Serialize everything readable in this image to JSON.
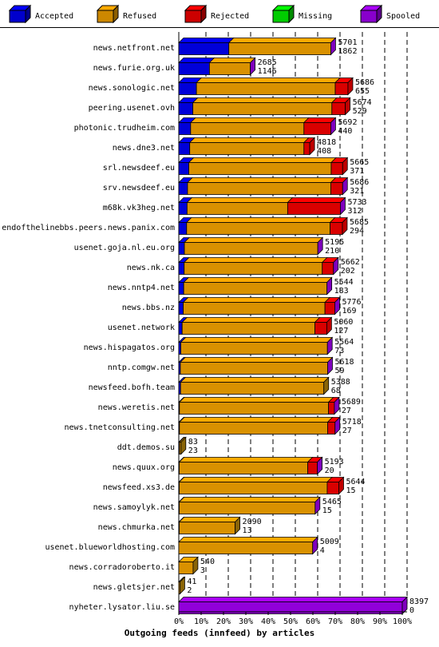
{
  "chart_data": {
    "type": "bar",
    "orientation": "horizontal",
    "stacked": true,
    "title": "",
    "xlabel": "Outgoing feeds (innfeed) by articles",
    "ylabel": "",
    "xlim": [
      0,
      100
    ],
    "x_ticks": [
      "0%",
      "10%",
      "20%",
      "30%",
      "40%",
      "50%",
      "60%",
      "70%",
      "80%",
      "90%",
      "100%"
    ],
    "grid": true,
    "legend_position": "top",
    "legend": [
      {
        "name": "Accepted",
        "color": "#0000ff"
      },
      {
        "name": "Refused",
        "color": "#ffaa00"
      },
      {
        "name": "Rejected",
        "color": "#ff0000"
      },
      {
        "name": "Missing",
        "color": "#00ff00"
      },
      {
        "name": "Spooled",
        "color": "#aa00ff"
      }
    ],
    "categories": [
      "news.netfront.net",
      "news.furie.org.uk",
      "news.sonologic.net",
      "peering.usenet.ovh",
      "photonic.trudheim.com",
      "news.dne3.net",
      "srl.newsdeef.eu",
      "srv.newsdeef.eu",
      "m68k.vk3heg.net",
      "endofthelinebbs.peers.news.panix.com",
      "usenet.goja.nl.eu.org",
      "news.nk.ca",
      "news.nntp4.net",
      "news.bbs.nz",
      "usenet.network",
      "news.hispagatos.org",
      "nntp.comgw.net",
      "newsfeed.bofh.team",
      "news.weretis.net",
      "news.tnetconsulting.net",
      "ddt.demos.su",
      "news.quux.org",
      "newsfeed.xs3.de",
      "news.samoylyk.net",
      "news.chmurka.net",
      "usenet.blueworldhosting.com",
      "news.corradoroberto.it",
      "news.gletsjer.net",
      "nyheter.lysator.liu.se"
    ],
    "offered": [
      "5701",
      "2685",
      "5686",
      "5674",
      "5692",
      "4818",
      "5665",
      "5686",
      "5733",
      "5685",
      "5195",
      "5662",
      "5544",
      "5776",
      "5060",
      "5564",
      "5618",
      "5388",
      "5689",
      "5718",
      "83",
      "5193",
      "5644",
      "5465",
      "2090",
      "5009",
      "540",
      "41",
      "8397"
    ],
    "accepted_count": [
      "1862",
      "1146",
      "655",
      "529",
      "440",
      "408",
      "371",
      "321",
      "312",
      "294",
      "210",
      "202",
      "183",
      "169",
      "127",
      "73",
      "59",
      "68",
      "27",
      "27",
      "23",
      "20",
      "15",
      "15",
      "13",
      "4",
      "3",
      "2",
      "0"
    ],
    "series": [
      {
        "name": "Accepted",
        "color": "#0000ff",
        "values": [
          22.4,
          13.7,
          7.9,
          6.3,
          5.3,
          4.9,
          4.5,
          3.9,
          3.7,
          3.5,
          2.5,
          2.4,
          2.2,
          2.0,
          1.5,
          0.9,
          0.7,
          0.8,
          0.3,
          0.3,
          0.3,
          0.2,
          0.2,
          0.2,
          0.2,
          0.0,
          0.0,
          0.0,
          0.0
        ]
      },
      {
        "name": "Refused",
        "color": "#ffaa00",
        "values": [
          45.6,
          18.3,
          62.1,
          62.2,
          50.7,
          51.1,
          63.7,
          64.1,
          45.0,
          64.2,
          59.7,
          61.8,
          64.1,
          63.4,
          59.4,
          65.6,
          65.9,
          64.1,
          66.7,
          66.3,
          0.7,
          57.5,
          66.2,
          60.8,
          25.0,
          59.9,
          6.4,
          0.5,
          0.0
        ]
      },
      {
        "name": "Rejected",
        "color": "#ff0000",
        "values": [
          0.0,
          0.0,
          5.7,
          6.0,
          12.0,
          2.6,
          5.1,
          5.3,
          23.6,
          5.5,
          0.0,
          5.0,
          0.0,
          4.4,
          5.3,
          0.0,
          0.0,
          0.0,
          2.6,
          3.3,
          0.0,
          4.3,
          5.2,
          0.0,
          0.0,
          0.0,
          0.0,
          0.0,
          0.0
        ]
      },
      {
        "name": "Missing",
        "color": "#00ff00",
        "values": [
          0,
          0,
          0,
          0,
          0,
          0,
          0,
          0,
          0,
          0,
          0,
          0,
          0,
          0,
          0,
          0,
          0,
          0,
          0,
          0,
          0,
          0,
          0,
          0,
          0,
          0,
          0,
          0,
          0
        ]
      },
      {
        "name": "Spooled",
        "color": "#aa00ff",
        "values": [
          0.0,
          0.0,
          0.0,
          0.0,
          0.0,
          0.0,
          0.0,
          0.0,
          0.0,
          0.0,
          0.0,
          0.0,
          0.0,
          0.0,
          0.0,
          0.0,
          0.0,
          0.0,
          0.0,
          0.0,
          0.0,
          0.0,
          0.0,
          0.0,
          0.0,
          0.0,
          0.0,
          0.0,
          100.0
        ]
      }
    ],
    "end_cap_color": [
      "#aa00ff",
      "#aa00ff",
      "#ff0000",
      "#ff0000",
      "#aa00ff",
      "#ff0000",
      "#ff0000",
      "#aa00ff",
      "#aa00ff",
      "#ff0000",
      "#aa00ff",
      "#aa00ff",
      "#aa00ff",
      "#aa00ff",
      "#ff0000",
      "#aa00ff",
      "#aa00ff",
      "#b8860b",
      "#aa00ff",
      "#aa00ff",
      "#b8860b",
      "#aa00ff",
      "#ff0000",
      "#aa00ff",
      "#b8860b",
      "#aa00ff",
      "#b8860b",
      "#b8860b",
      "#aa00ff"
    ]
  }
}
